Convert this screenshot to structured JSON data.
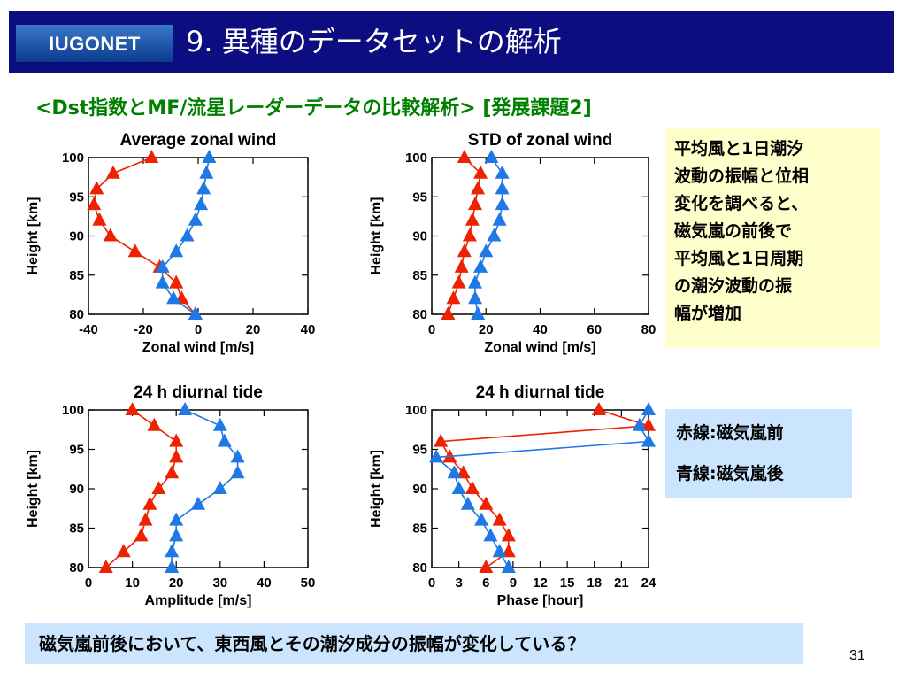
{
  "slide": {
    "logo_text": "IUGONET",
    "title": "9. 異種のデータセットの解析",
    "subtitle": "<Dst指数とMF/流星レーダーデータの比較解析> [発展課題2]",
    "note_yellow": [
      "平均風と1日潮汐",
      "波動の振幅と位相",
      "変化を調べると、",
      "磁気嵐の前後で",
      "平均風と1日周期",
      "の潮汐波動の振",
      "幅が増加"
    ],
    "legend_red": "赤線:磁気嵐前",
    "legend_blue": "青線:磁気嵐後",
    "bottom_note": "磁気嵐前後において、東西風とその潮汐成分の振幅が変化している？",
    "page_number": "31"
  },
  "colors": {
    "red": "#ee2200",
    "blue": "#1e78e6",
    "header_bg": "#0d0d82",
    "subtitle": "#008000"
  },
  "chart_data": [
    {
      "type": "line",
      "title": "Average zonal wind",
      "xlabel": "Zonal wind [m/s]",
      "ylabel": "Height [km]",
      "xlim": [
        -40,
        40
      ],
      "ylim": [
        80,
        100
      ],
      "xticks": [
        -40,
        -20,
        0,
        20,
        40
      ],
      "yticks": [
        80,
        85,
        90,
        95,
        100
      ],
      "y": [
        100,
        98,
        96,
        94,
        92,
        90,
        88,
        86,
        84,
        82,
        80
      ],
      "series": [
        {
          "color": "red",
          "values": [
            -17,
            -31,
            -37,
            -38,
            -36,
            -32,
            -23,
            -14,
            -8,
            -6,
            -1
          ]
        },
        {
          "color": "blue",
          "values": [
            4,
            3,
            2,
            1,
            -1,
            -4,
            -8,
            -13,
            -13,
            -9,
            -1
          ]
        }
      ]
    },
    {
      "type": "line",
      "title": "STD of zonal wind",
      "xlabel": "Zonal wind [m/s]",
      "ylabel": "Height [km]",
      "xlim": [
        0,
        80
      ],
      "ylim": [
        80,
        100
      ],
      "xticks": [
        0,
        20,
        40,
        60,
        80
      ],
      "yticks": [
        80,
        85,
        90,
        95,
        100
      ],
      "y": [
        100,
        98,
        96,
        94,
        92,
        90,
        88,
        86,
        84,
        82,
        80
      ],
      "series": [
        {
          "color": "red",
          "values": [
            12,
            18,
            17,
            16,
            15,
            14,
            12,
            11,
            10,
            8,
            6
          ]
        },
        {
          "color": "blue",
          "values": [
            22,
            26,
            26,
            26,
            25,
            23,
            20,
            18,
            16,
            16,
            17
          ]
        }
      ]
    },
    {
      "type": "line",
      "title": "24 h diurnal tide",
      "xlabel": "Amplitude [m/s]",
      "ylabel": "Height [km]",
      "xlim": [
        0,
        50
      ],
      "ylim": [
        80,
        100
      ],
      "xticks": [
        0,
        10,
        20,
        30,
        40,
        50
      ],
      "yticks": [
        80,
        85,
        90,
        95,
        100
      ],
      "y": [
        100,
        98,
        96,
        94,
        92,
        90,
        88,
        86,
        84,
        82,
        80
      ],
      "series": [
        {
          "color": "red",
          "values": [
            10,
            15,
            20,
            20,
            19,
            16,
            14,
            13,
            12,
            8,
            4
          ]
        },
        {
          "color": "blue",
          "values": [
            22,
            30,
            31,
            34,
            34,
            30,
            25,
            20,
            20,
            19,
            19
          ]
        }
      ]
    },
    {
      "type": "line",
      "title": "24 h diurnal tide",
      "xlabel": "Phase [hour]",
      "ylabel": "Height [km]",
      "xlim": [
        0,
        24
      ],
      "ylim": [
        80,
        100
      ],
      "xticks": [
        0,
        3,
        6,
        9,
        12,
        15,
        18,
        21,
        24
      ],
      "yticks": [
        80,
        85,
        90,
        95,
        100
      ],
      "series": [
        {
          "color": "red",
          "points": [
            [
              18.5,
              100
            ],
            [
              24,
              98
            ],
            [
              1,
              96
            ],
            [
              2,
              94
            ],
            [
              3.5,
              92
            ],
            [
              4.5,
              90
            ],
            [
              6,
              88
            ],
            [
              7.5,
              86
            ],
            [
              8.5,
              84
            ],
            [
              8.5,
              82
            ],
            [
              6,
              80
            ]
          ]
        },
        {
          "color": "blue",
          "points": [
            [
              24,
              100
            ],
            [
              23,
              98
            ],
            [
              24,
              96
            ],
            [
              0.5,
              94
            ],
            [
              2.5,
              92
            ],
            [
              3,
              90
            ],
            [
              4,
              88
            ],
            [
              5.5,
              86
            ],
            [
              6.5,
              84
            ],
            [
              7.5,
              82
            ],
            [
              8.5,
              80
            ]
          ]
        }
      ]
    }
  ]
}
